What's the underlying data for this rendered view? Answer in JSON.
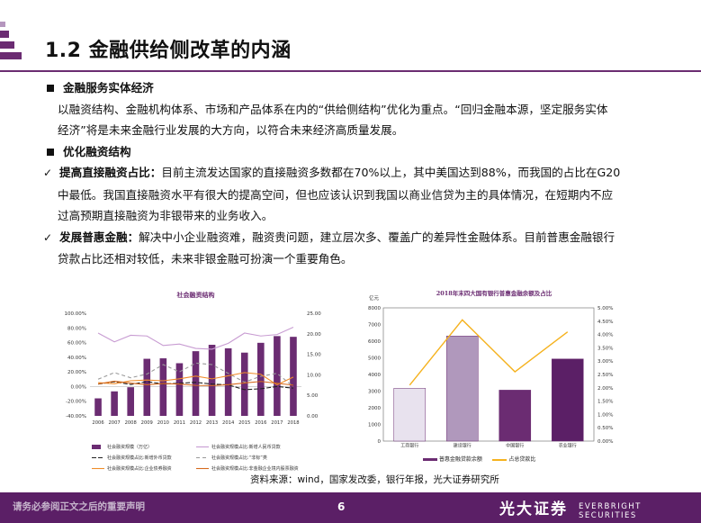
{
  "header": {
    "title": "1.2 金融供给侧改革的内涵"
  },
  "sections": {
    "s1_title": "金融服务实体经济",
    "s1_line1": "以融资结构、金融机构体系、市场和产品体系在内的“供给侧结构”优化为重点。“回归金融本源，坚定服务实体",
    "s1_line2": "经济”将是未来金融行业发展的大方向，以符合未来经济高质量发展。",
    "s2_title": "优化融资结构",
    "c1_label": "提高直接融资占比：",
    "c1_line1": "目前主流发达国家的直接融资多数都在70%以上，其中美国达到88%，而我国的占比在G20",
    "c1_line2": "中最低。我国直接融资水平有很大的提高空间，但也应该认识到我国以商业信贷为主的具体情况，在短期内不应",
    "c1_line3": "过高预期直接融资为非银带来的业务收入。",
    "c2_label": "发展普惠金融：",
    "c2_line1": "解决中小企业融资难，融资贵问题，建立层次多、覆盖广的差异性金融体系。目前普惠金融银行",
    "c2_line2": "贷款占比还相对较低，未来非银金融可扮演一个重要角色。"
  },
  "chart_data": [
    {
      "type": "bar",
      "title": "社会融资结构",
      "categories": [
        "2006",
        "2007",
        "2008",
        "2009",
        "2010",
        "2011",
        "2012",
        "2013",
        "2014",
        "2015",
        "2016",
        "2017",
        "2018"
      ],
      "y_left_ticks": [
        "100.00%",
        "80.00%",
        "60.00%",
        "40.00%",
        "20.00%",
        "0.00%",
        "-20.00%",
        "-40.00%"
      ],
      "y_right_ticks": [
        "25.00",
        "20.00",
        "15.00",
        "10.00",
        "5.00",
        "0.00"
      ],
      "ylim_right": [
        0,
        25
      ],
      "ylim_left": [
        -40,
        100
      ],
      "series": [
        {
          "name": "社会融资规模（万亿）",
          "kind": "bar",
          "axis": "right",
          "color": "#6b2c72",
          "values": [
            4.27,
            5.97,
            6.98,
            13.91,
            14.02,
            12.83,
            15.76,
            17.32,
            16.46,
            15.41,
            17.8,
            19.44,
            19.26
          ]
        },
        {
          "name": "社会融资规模占比:新增人民币贷款",
          "kind": "line",
          "axis": "left",
          "color": "#c89cd2",
          "dash": "solid",
          "values": [
            73,
            61,
            70,
            69,
            56,
            58,
            52,
            51,
            59,
            73,
            69,
            71,
            81
          ]
        },
        {
          "name": "社会融资规模占比:新增外币贷款",
          "kind": "line",
          "axis": "left",
          "color": "#222222",
          "dash": "5,2",
          "values": [
            3.4,
            6.5,
            2.8,
            6.7,
            3.5,
            4.5,
            5.8,
            3.4,
            2.2,
            -4.2,
            -3.0,
            0.1,
            -2.2
          ]
        },
        {
          "name": "社会融资规模占比:“非标”类",
          "kind": "line",
          "axis": "left",
          "color": "#999999",
          "dash": "4,3",
          "values": [
            10,
            19,
            12,
            17,
            30,
            20,
            32,
            30,
            18,
            6,
            14,
            18,
            0
          ]
        },
        {
          "name": "社会融资规模占比:企业债券融资",
          "kind": "line",
          "axis": "left",
          "color": "#f08c2a",
          "dash": "solid",
          "values": [
            5.4,
            3.8,
            7.9,
            8.9,
            7.9,
            10.6,
            14.3,
            10.5,
            14.7,
            19.1,
            16.8,
            2.3,
            12.9
          ]
        },
        {
          "name": "社会融资规模占比:非金融企业境内股票融资",
          "kind": "line",
          "axis": "left",
          "color": "#d66a1e",
          "dash": "solid",
          "values": [
            3.6,
            7.3,
            4.8,
            2.4,
            4.1,
            3.4,
            1.6,
            1.3,
            2.6,
            4.9,
            6.97,
            4.5,
            1.9
          ]
        }
      ],
      "legend": [
        "社会融资规模（万亿）",
        "社会融资规模占比:新增人民币贷款",
        "社会融资规模占比:新增外币贷款",
        "社会融资规模占比:“非标”类",
        "社会融资规模占比:企业债券融资",
        "社会融资规模占比:非金融企业境内股票融资"
      ]
    },
    {
      "type": "bar",
      "title": "2018年末四大国有银行普惠金融余额及占比",
      "left_unit": "亿元",
      "categories": [
        "工商银行",
        "建设银行",
        "中国银行",
        "农业银行"
      ],
      "y_left_ticks": [
        "8000",
        "7000",
        "6000",
        "5000",
        "4000",
        "3000",
        "2000",
        "1000",
        "0"
      ],
      "y_right_ticks": [
        "5.00%",
        "4.50%",
        "4.00%",
        "3.50%",
        "3.00%",
        "2.50%",
        "2.00%",
        "1.50%",
        "1.00%",
        "0.50%",
        "0.00%"
      ],
      "ylim_left": [
        0,
        8000
      ],
      "ylim_right": [
        0,
        5
      ],
      "series": [
        {
          "name": "普惠金融贷款余额",
          "kind": "bar",
          "axis": "left",
          "values": [
            3170,
            6310,
            3060,
            4930
          ],
          "colors": [
            "#e8e2ee",
            "#b098bc",
            "#6b2c72",
            "#5b1f66"
          ]
        },
        {
          "name": "占总贷款比",
          "kind": "line",
          "axis": "right",
          "color": "#f5b21e",
          "values": [
            2.1,
            4.55,
            2.6,
            4.1
          ]
        }
      ]
    }
  ],
  "source": "资料来源：wind，国家发改委，银行年报，光大证券研究所",
  "footer": {
    "note": "请务必参阅正文之后的重要声明",
    "page_number": "6",
    "logo_cn": "光大证券",
    "logo_en": "EVERBRIGHT SECURITIES"
  },
  "colors": {
    "brand": "#5b1f66",
    "accent": "#6b2c72"
  }
}
